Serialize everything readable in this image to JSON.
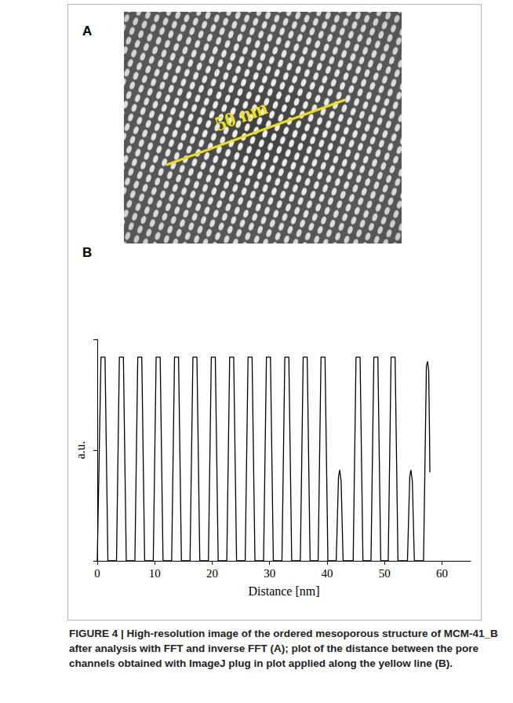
{
  "image_panel": {
    "panel": "A",
    "scale_label": "50 nm",
    "scale_color": "#f0e010"
  },
  "chart_data": {
    "panel": "B",
    "type": "line",
    "color": "#000000",
    "x_label": "Distance [nm]",
    "y_label": "a.u.",
    "x": [
      0,
      0.65,
      1.35,
      1.85,
      3.35,
      3.85,
      4.55,
      5.05,
      6.55,
      7.05,
      7.75,
      8.25,
      9.75,
      10.25,
      10.95,
      11.45,
      12.95,
      13.45,
      14.15,
      14.65,
      16.15,
      16.65,
      17.35,
      17.85,
      19.35,
      19.85,
      20.55,
      21.05,
      22.55,
      23.05,
      23.75,
      24.25,
      25.75,
      26.25,
      26.95,
      27.45,
      28.95,
      29.45,
      30.15,
      30.65,
      32.15,
      32.65,
      33.35,
      33.85,
      35.35,
      35.85,
      36.55,
      37.05,
      38.45,
      38.95,
      39.65,
      40.15,
      41.6,
      42.0,
      42.2,
      42.45,
      42.8,
      44.55,
      45.05,
      45.75,
      46.25,
      47.65,
      48.15,
      48.85,
      49.35,
      50.65,
      51.15,
      51.85,
      52.35,
      54.0,
      54.4,
      54.6,
      54.85,
      55.2,
      56.8,
      57.3,
      57.5,
      57.7,
      57.85,
      57.9
    ],
    "values": [
      0,
      0.92,
      0.92,
      0,
      0,
      0.92,
      0.92,
      0,
      0,
      0.92,
      0.92,
      0,
      0,
      0.92,
      0.92,
      0,
      0,
      0.92,
      0.92,
      0,
      0,
      0.92,
      0.92,
      0,
      0,
      0.92,
      0.92,
      0,
      0,
      0.92,
      0.92,
      0,
      0,
      0.92,
      0.92,
      0,
      0,
      0.92,
      0.92,
      0,
      0,
      0.92,
      0.92,
      0,
      0,
      0.92,
      0.92,
      0,
      0,
      0.92,
      0.92,
      0,
      0,
      0.38,
      0.41,
      0.36,
      0,
      0,
      0.92,
      0.92,
      0,
      0,
      0.92,
      0.92,
      0,
      0,
      0.92,
      0.92,
      0,
      0,
      0.38,
      0.41,
      0.36,
      0,
      0,
      0.88,
      0.9,
      0.86,
      0.55,
      0.4
    ],
    "xlim": [
      0,
      65
    ],
    "xticks": [
      0,
      10,
      20,
      30,
      40,
      50,
      60
    ],
    "ylim": [
      0,
      1
    ],
    "yticks": [
      0,
      0.5,
      1
    ],
    "grid": false,
    "tick_labels": "x"
  },
  "caption": {
    "text": "FIGURE 4 | High-resolution image of the ordered mesoporous structure of MCM-41_B after analysis with FFT and inverse FFT (A); plot of the distance between the pore channels obtained with ImageJ plug in plot applied along the yellow line (B)."
  }
}
